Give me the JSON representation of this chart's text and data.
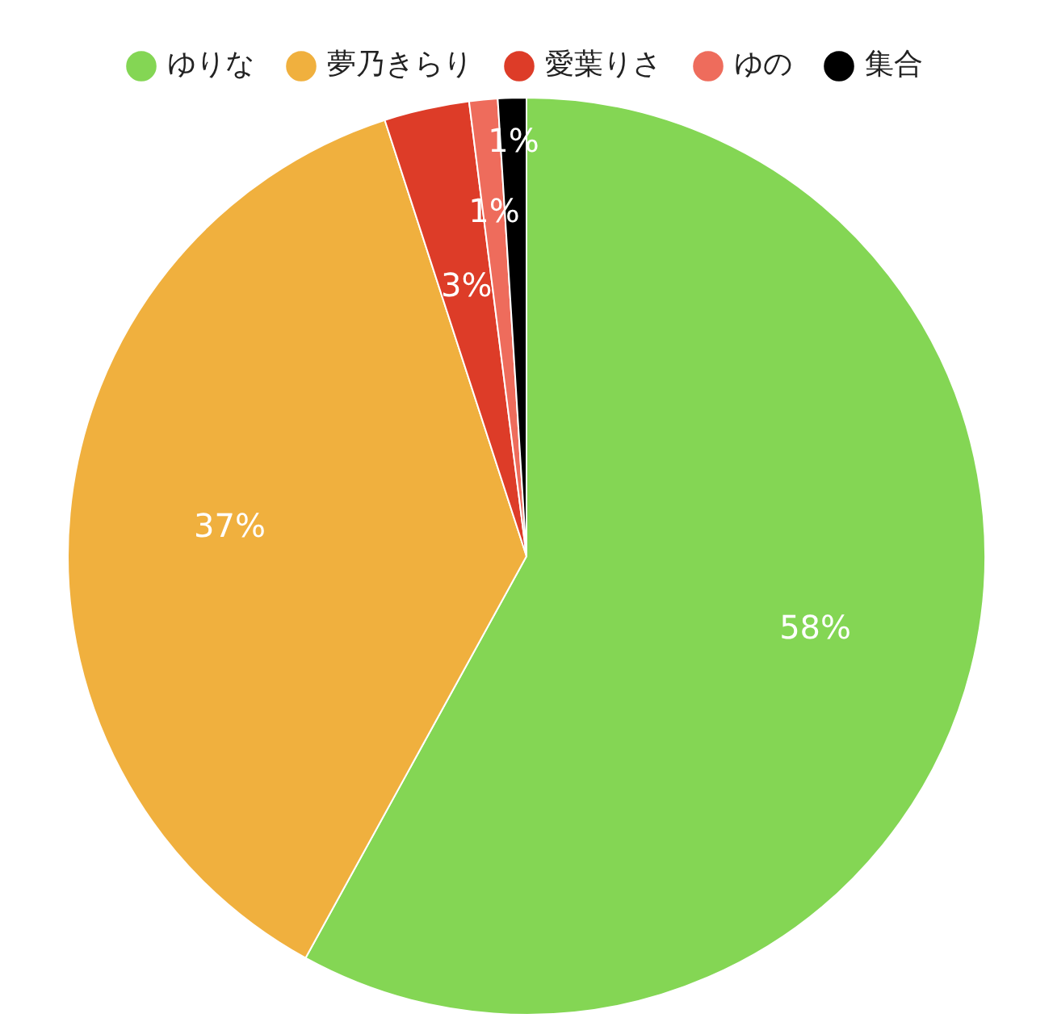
{
  "chart_data": {
    "type": "pie",
    "categories": [
      "ゆりな",
      "夢乃きらり",
      "愛葉りさ",
      "ゆの",
      "集合"
    ],
    "values": [
      58,
      37,
      3,
      1,
      1
    ],
    "colors": [
      "#84d654",
      "#f0b03e",
      "#dd3c28",
      "#ee6c5c",
      "#000000"
    ],
    "value_labels": [
      "58%",
      "37%",
      "3%",
      "1%",
      "1%"
    ],
    "legend": "top"
  }
}
